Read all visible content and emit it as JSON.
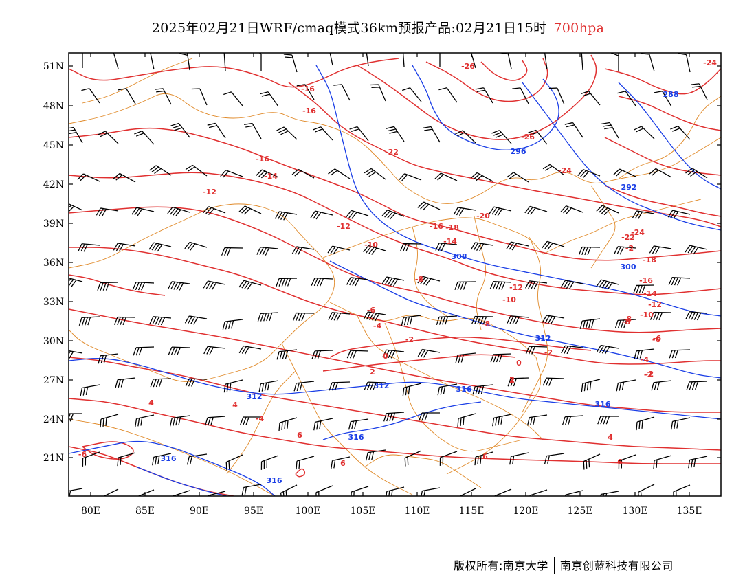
{
  "title": {
    "main": "2025年02月21日WRF/cmaq模式36km预报产品:02月21日15时",
    "level": "700hpa",
    "level_color": "#e03030"
  },
  "axes": {
    "lat_labels": [
      "51N",
      "48N",
      "45N",
      "42N",
      "39N",
      "36N",
      "33N",
      "30N",
      "27N",
      "24N",
      "21N"
    ],
    "lon_labels": [
      "80E",
      "85E",
      "90E",
      "95E",
      "100E",
      "105E",
      "110E",
      "115E",
      "120E",
      "125E",
      "130E",
      "135E"
    ]
  },
  "colors": {
    "temperature_contour": "#e03030",
    "height_contour": "#1a3ee6",
    "boundary": "#e08a2a",
    "wind_barb": "#000000"
  },
  "temperature_labels": [
    "-16",
    "-16",
    "-16",
    "-14",
    "-12",
    "-12",
    "-10",
    "-8",
    "-6",
    "-4",
    "-2",
    "0",
    "2",
    "2",
    "4",
    "-4",
    "4",
    "6",
    "6",
    "6",
    "-6",
    "-26",
    "-22",
    "-26",
    "-24",
    "-20",
    "-18",
    "-16",
    "-14",
    "-12",
    "-10",
    "-8",
    "-24",
    "-22",
    "-2",
    "-18",
    "-16",
    "-14",
    "-12",
    "-10",
    "-8",
    "-6",
    "-4",
    "-2",
    "0",
    "-2",
    "2",
    "4",
    "6",
    "-24",
    "-2",
    "-8",
    "-6"
  ],
  "height_labels": [
    "288",
    "296",
    "292",
    "300",
    "308",
    "312",
    "312",
    "312",
    "316",
    "316",
    "316",
    "316",
    "316"
  ],
  "footer": {
    "left": "版权所有:南京大学",
    "right": "南京创蓝科技有限公司"
  }
}
